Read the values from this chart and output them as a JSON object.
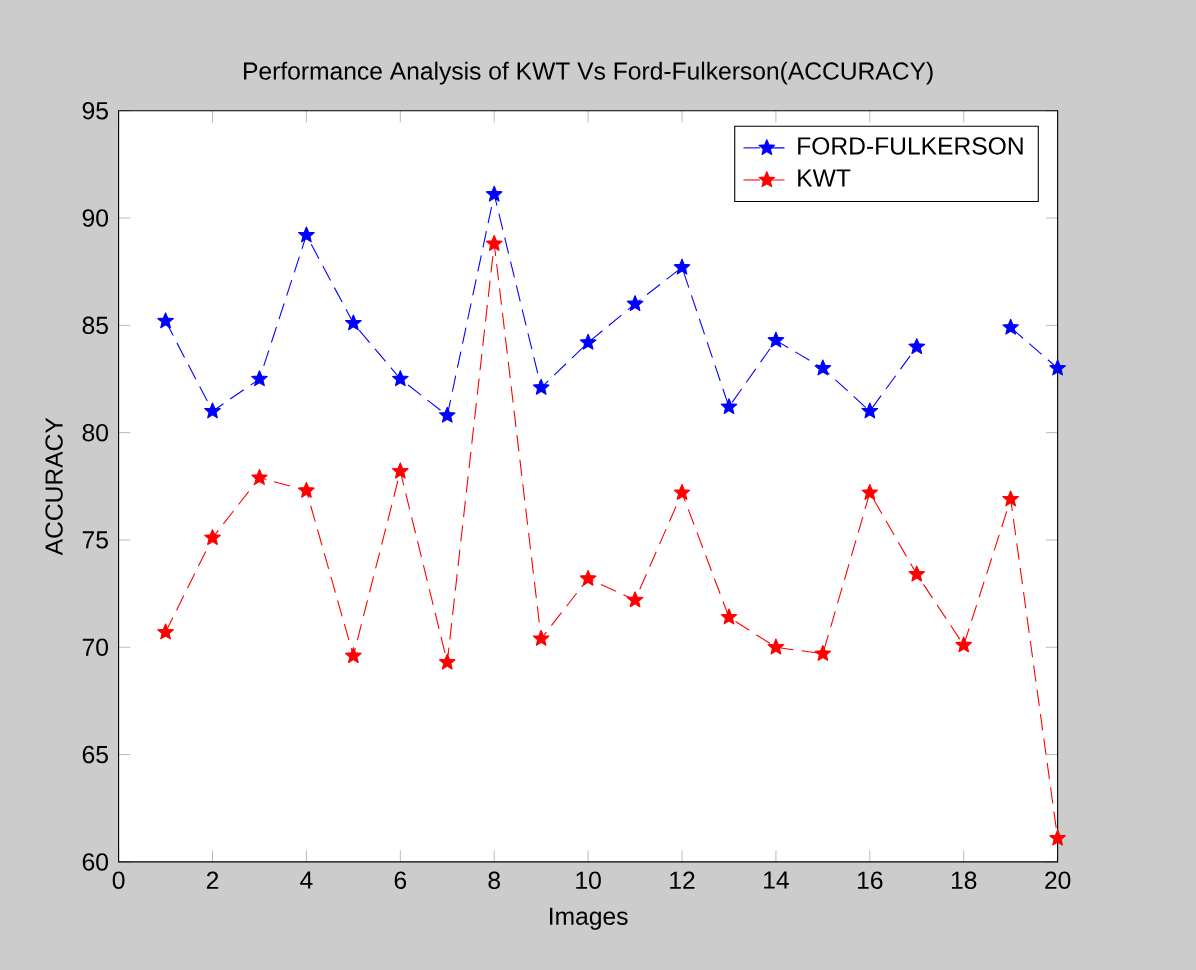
{
  "chart_data": {
    "type": "line",
    "title": "Performance Analysis of KWT Vs Ford-Fulkerson(ACCURACY)",
    "xlabel": "Images",
    "ylabel": "ACCURACY",
    "x": [
      1,
      2,
      3,
      4,
      5,
      6,
      7,
      8,
      9,
      10,
      11,
      12,
      13,
      14,
      15,
      16,
      17,
      18,
      19,
      20
    ],
    "series": [
      {
        "name": "FORD-FULKERSON",
        "color": "#0000ff",
        "values": [
          85.2,
          81.0,
          82.5,
          89.2,
          85.1,
          82.5,
          80.8,
          91.1,
          82.1,
          84.2,
          86.0,
          87.7,
          81.2,
          84.3,
          83.0,
          81.0,
          84.0,
          null,
          84.9,
          83.0
        ]
      },
      {
        "name": "KWT",
        "color": "#ff0000",
        "values": [
          70.7,
          75.1,
          77.9,
          77.3,
          69.6,
          78.2,
          69.3,
          88.8,
          70.4,
          73.2,
          72.2,
          77.2,
          71.4,
          70.0,
          69.7,
          77.2,
          73.4,
          70.1,
          76.9,
          61.1
        ]
      }
    ],
    "xlim": [
      0,
      20
    ],
    "xticks": [
      0,
      2,
      4,
      6,
      8,
      10,
      12,
      14,
      16,
      18,
      20
    ],
    "ylim": [
      60,
      95
    ],
    "yticks": [
      60,
      65,
      70,
      75,
      80,
      85,
      90,
      95
    ],
    "grid": false,
    "legend": "top right",
    "marker": "star",
    "line_style": "dashed"
  }
}
